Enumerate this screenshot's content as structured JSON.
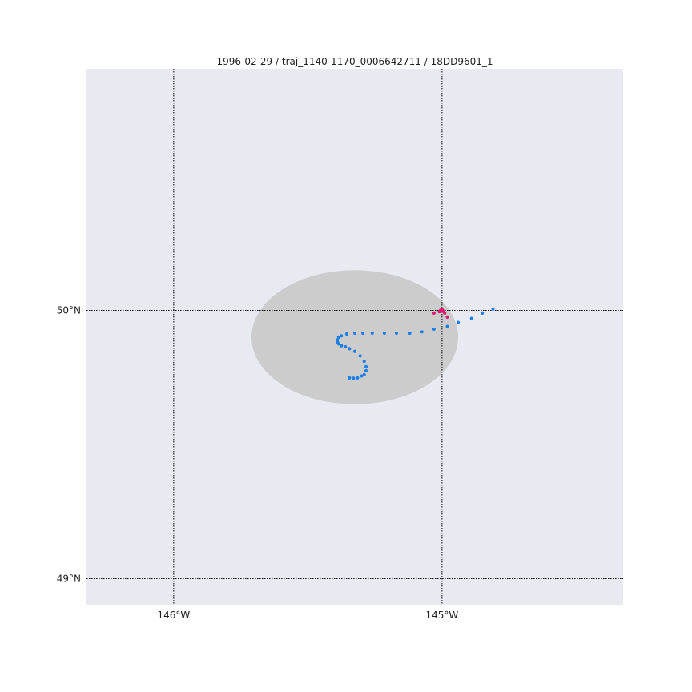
{
  "title": "1996-02-29 / traj_1140-1170_0006642711 / 18DD9601_1",
  "map": {
    "lon_range": [
      -146.325,
      -144.325
    ],
    "lat_range": [
      48.9,
      50.9
    ],
    "background_color": "#e9e9f1",
    "gridlines": {
      "style": "dotted",
      "color": "#000000"
    },
    "lon_ticks": [
      {
        "value": -146,
        "label": "146°W"
      },
      {
        "value": -145,
        "label": "145°W"
      }
    ],
    "lat_ticks": [
      {
        "value": 50,
        "label": "50°N"
      },
      {
        "value": 49,
        "label": "49°N"
      }
    ],
    "region": {
      "shape": "ellipse",
      "color": "#cccccc",
      "center_lon": -145.325,
      "center_lat": 49.9,
      "semi_axis_lon_deg": 0.385,
      "semi_axis_lat_deg": 0.25
    }
  },
  "chart_data": {
    "type": "scatter",
    "xlabel": "",
    "ylabel": "",
    "xlim": [
      -146.325,
      -144.325
    ],
    "ylim": [
      48.9,
      50.9
    ],
    "grid": true,
    "series": [
      {
        "color": "#1e7fe6",
        "points": [
          [
            -144.81,
            50.005
          ],
          [
            -144.85,
            49.99
          ],
          [
            -144.89,
            49.97
          ],
          [
            -144.94,
            49.955
          ],
          [
            -144.98,
            49.94
          ],
          [
            -145.03,
            49.93
          ],
          [
            -145.075,
            49.92
          ],
          [
            -145.12,
            49.915
          ],
          [
            -145.17,
            49.915
          ],
          [
            -145.215,
            49.915
          ],
          [
            -145.26,
            49.915
          ],
          [
            -145.295,
            49.915
          ],
          [
            -145.325,
            49.915
          ],
          [
            -145.355,
            49.912
          ],
          [
            -145.375,
            49.905
          ],
          [
            -145.385,
            49.9
          ],
          [
            -145.39,
            49.89
          ],
          [
            -145.39,
            49.882
          ],
          [
            -145.385,
            49.875
          ],
          [
            -145.375,
            49.868
          ],
          [
            -145.36,
            49.864
          ],
          [
            -145.345,
            49.857
          ],
          [
            -145.325,
            49.847
          ],
          [
            -145.305,
            49.83
          ],
          [
            -145.29,
            49.81
          ],
          [
            -145.283,
            49.79
          ],
          [
            -145.283,
            49.775
          ],
          [
            -145.29,
            49.76
          ],
          [
            -145.3,
            49.755
          ],
          [
            -145.315,
            49.748
          ],
          [
            -145.33,
            49.747
          ],
          [
            -145.345,
            49.748
          ]
        ]
      },
      {
        "color": "#e0186e",
        "points": [
          [
            -144.98,
            49.975
          ],
          [
            -144.99,
            49.99
          ],
          [
            -144.995,
            49.996
          ],
          [
            -144.998,
            50.0
          ],
          [
            -145.0,
            50.003
          ],
          [
            -145.002,
            50.0
          ],
          [
            -145.005,
            50.001
          ],
          [
            -145.01,
            49.995
          ],
          [
            -145.03,
            49.99
          ]
        ]
      }
    ]
  }
}
